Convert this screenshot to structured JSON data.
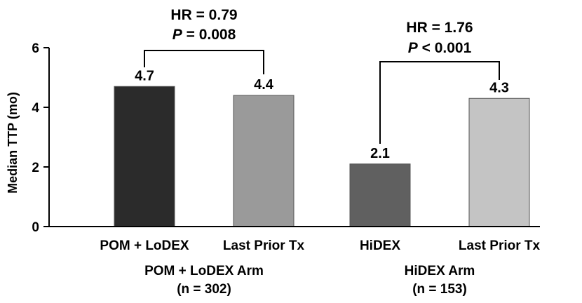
{
  "chart_data": {
    "type": "bar",
    "ylabel": "Median TTP (mo)",
    "ylim": [
      0,
      6
    ],
    "yticks": [
      0,
      2,
      4,
      6
    ],
    "grid": false,
    "categories": [
      "POM + LoDEX",
      "Last Prior Tx",
      "HiDEX",
      "Last Prior Tx"
    ],
    "values": [
      4.7,
      4.4,
      2.1,
      4.3
    ],
    "value_labels": [
      "4.7",
      "4.4",
      "2.1",
      "4.3"
    ],
    "bar_colors": [
      "#2b2b2b",
      "#9a9a9a",
      "#606060",
      "#c4c4c4"
    ],
    "groups": [
      {
        "name": "POM + LoDEX Arm",
        "n": "(n = 302)",
        "bars": [
          0,
          1
        ]
      },
      {
        "name": "HiDEX Arm",
        "n": "(n = 153)",
        "bars": [
          2,
          3
        ]
      }
    ],
    "annotations": [
      {
        "line1": "HR = 0.79",
        "p_symbol": "P",
        "p_text": " = 0.008",
        "bars": [
          0,
          1
        ]
      },
      {
        "line1": "HR = 1.76",
        "p_symbol": "P",
        "p_text": " < 0.001",
        "bars": [
          2,
          3
        ]
      }
    ]
  }
}
